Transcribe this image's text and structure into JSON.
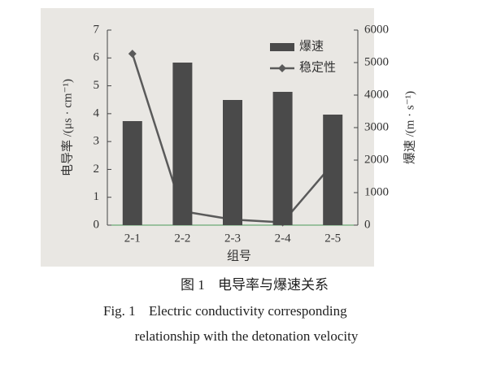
{
  "chart_data": {
    "type": "bar_line",
    "categories": [
      "2-1",
      "2-2",
      "2-3",
      "2-4",
      "2-5"
    ],
    "x_label": "组号",
    "y_label": "电导率 /(μs · cm⁻¹)",
    "y2_label": "爆速 /(m · s⁻¹)",
    "ylim": [
      0,
      7
    ],
    "yticks": [
      0,
      1,
      2,
      3,
      4,
      5,
      6,
      7
    ],
    "y2lim": [
      0,
      6000
    ],
    "y2ticks": [
      0,
      1000,
      2000,
      3000,
      4000,
      5000,
      6000
    ],
    "legend": "upper right",
    "series": [
      {
        "name": "爆速",
        "type": "bar",
        "axis": "y2",
        "color": "#4a4a4a",
        "values": [
          3200,
          5000,
          3850,
          4100,
          3400
        ]
      },
      {
        "name": "稳定性",
        "type": "line",
        "axis": "y",
        "color": "#5a5a5a",
        "values": [
          6.15,
          0.5,
          0.2,
          0.1,
          2.2
        ]
      }
    ]
  },
  "caption": {
    "chinese_label": "图 1",
    "chinese": "电导率与爆速关系",
    "english_label": "Fig. 1",
    "english_line1": "Electric conductivity corresponding",
    "english_line2": "relationship with the detonation velocity"
  }
}
